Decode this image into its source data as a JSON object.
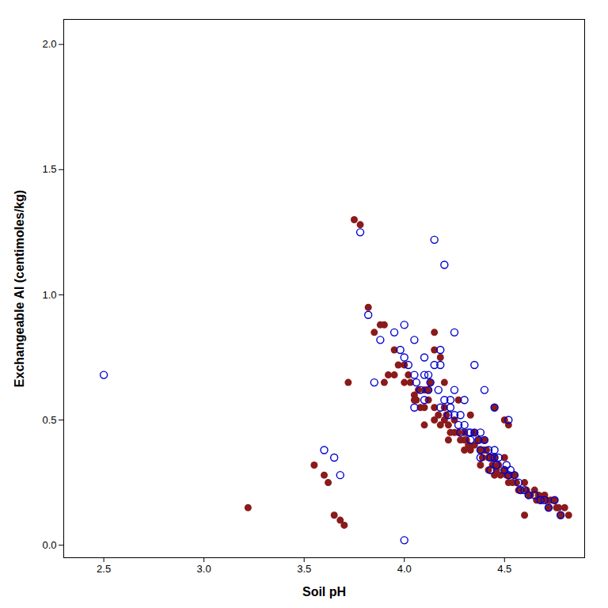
{
  "chart_data": {
    "type": "scatter",
    "xlabel": "Soil pH",
    "ylabel": "Exchangeable Al (centimoles/kg)",
    "xlim": [
      2.3,
      4.9
    ],
    "ylim": [
      -0.05,
      2.1
    ],
    "xticks": [
      2.5,
      {
        "value": 3.0,
        "label": "3.0"
      },
      3.5,
      {
        "value": 4.0,
        "label": "4.0"
      },
      4.5
    ],
    "yticks": [
      {
        "value": 0.0,
        "label": "0.0"
      },
      0.5,
      {
        "value": 1.0,
        "label": "1.0"
      },
      1.5,
      {
        "value": 2.0,
        "label": "2.0"
      }
    ],
    "grid": false,
    "series": [
      {
        "color": "#8B1A1A",
        "marker": "circle",
        "x": [
          3.75,
          3.78,
          3.82,
          3.88,
          3.9,
          3.92,
          3.95,
          3.97,
          4.0,
          4.02,
          4.03,
          4.05,
          4.06,
          4.07,
          4.08,
          4.1,
          4.1,
          4.12,
          4.13,
          4.15,
          4.15,
          4.17,
          4.18,
          4.2,
          4.2,
          4.21,
          4.22,
          4.23,
          4.25,
          4.25,
          4.27,
          4.28,
          4.3,
          4.3,
          4.31,
          4.32,
          4.33,
          4.35,
          4.35,
          4.37,
          4.38,
          4.4,
          4.4,
          4.41,
          4.42,
          4.43,
          4.44,
          4.45,
          4.46,
          4.47,
          4.48,
          4.5,
          4.5,
          4.51,
          4.52,
          4.53,
          4.54,
          4.55,
          4.56,
          4.57,
          4.58,
          4.6,
          4.61,
          4.62,
          4.63,
          4.65,
          4.66,
          4.67,
          4.68,
          4.7,
          4.71,
          4.72,
          4.73,
          4.75,
          4.76,
          4.77,
          4.78,
          4.8,
          4.82,
          3.55,
          3.6,
          3.62,
          3.65,
          3.68,
          3.7,
          3.72,
          3.85,
          4.15,
          4.45,
          4.5,
          4.52,
          4.12,
          4.18,
          4.27,
          4.33,
          4.39,
          4.42,
          4.45,
          3.9,
          3.95,
          4.0,
          4.05,
          4.1,
          4.22,
          4.3,
          4.38,
          4.15,
          4.2,
          4.6,
          3.22
        ],
        "values": [
          1.3,
          1.28,
          0.95,
          0.88,
          0.65,
          0.68,
          0.68,
          0.72,
          0.72,
          0.68,
          0.65,
          0.6,
          0.58,
          0.62,
          0.55,
          0.62,
          0.55,
          0.58,
          0.65,
          0.55,
          0.5,
          0.52,
          0.48,
          0.5,
          0.55,
          0.52,
          0.48,
          0.45,
          0.5,
          0.45,
          0.45,
          0.42,
          0.42,
          0.45,
          0.42,
          0.4,
          0.38,
          0.4,
          0.45,
          0.42,
          0.38,
          0.38,
          0.42,
          0.38,
          0.35,
          0.35,
          0.32,
          0.35,
          0.3,
          0.32,
          0.28,
          0.3,
          0.35,
          0.28,
          0.25,
          0.28,
          0.25,
          0.28,
          0.25,
          0.22,
          0.22,
          0.25,
          0.22,
          0.2,
          0.2,
          0.22,
          0.18,
          0.2,
          0.18,
          0.2,
          0.18,
          0.15,
          0.18,
          0.18,
          0.15,
          0.15,
          0.12,
          0.15,
          0.12,
          0.32,
          0.28,
          0.25,
          0.12,
          0.1,
          0.08,
          0.65,
          0.85,
          0.78,
          0.55,
          0.5,
          0.48,
          0.62,
          0.75,
          0.58,
          0.52,
          0.35,
          0.3,
          0.28,
          0.88,
          0.78,
          0.65,
          0.58,
          0.48,
          0.42,
          0.38,
          0.32,
          0.85,
          0.65,
          0.12,
          0.15
        ]
      },
      {
        "color": "#0000CD",
        "marker": "open_circle",
        "x": [
          2.5,
          3.78,
          3.82,
          3.88,
          3.95,
          3.98,
          4.0,
          4.02,
          4.05,
          4.06,
          4.08,
          4.1,
          4.12,
          4.13,
          4.15,
          4.17,
          4.18,
          4.2,
          4.22,
          4.23,
          4.25,
          4.27,
          4.28,
          4.3,
          4.32,
          4.33,
          4.35,
          4.37,
          4.38,
          4.4,
          4.42,
          4.43,
          4.45,
          4.46,
          4.47,
          4.5,
          4.51,
          4.52,
          4.53,
          4.55,
          4.57,
          4.58,
          4.6,
          4.62,
          4.65,
          4.68,
          4.7,
          4.72,
          4.75,
          4.78,
          3.6,
          3.65,
          3.68,
          3.85,
          4.0,
          4.05,
          4.1,
          4.12,
          4.18,
          4.23,
          4.28,
          4.33,
          4.38,
          4.43,
          4.15,
          4.2,
          4.25,
          4.35,
          4.4,
          4.45,
          4.0,
          4.05,
          4.1,
          4.18,
          4.25,
          4.3,
          4.38,
          4.45,
          4.52
        ],
        "values": [
          0.68,
          1.25,
          0.92,
          0.82,
          0.85,
          0.78,
          0.75,
          0.72,
          0.68,
          0.65,
          0.62,
          0.58,
          0.62,
          0.65,
          0.72,
          0.62,
          0.55,
          0.58,
          0.52,
          0.55,
          0.52,
          0.48,
          0.45,
          0.48,
          0.45,
          0.42,
          0.45,
          0.42,
          0.38,
          0.42,
          0.38,
          0.35,
          0.38,
          0.32,
          0.35,
          0.3,
          0.32,
          0.28,
          0.3,
          0.28,
          0.25,
          0.22,
          0.22,
          0.2,
          0.2,
          0.18,
          0.18,
          0.15,
          0.18,
          0.12,
          0.38,
          0.35,
          0.28,
          0.65,
          0.88,
          0.82,
          0.75,
          0.68,
          0.72,
          0.58,
          0.52,
          0.45,
          0.35,
          0.3,
          1.22,
          1.12,
          0.85,
          0.72,
          0.62,
          0.55,
          0.02,
          0.55,
          0.68,
          0.78,
          0.62,
          0.58,
          0.45,
          0.35,
          0.5
        ]
      }
    ]
  }
}
